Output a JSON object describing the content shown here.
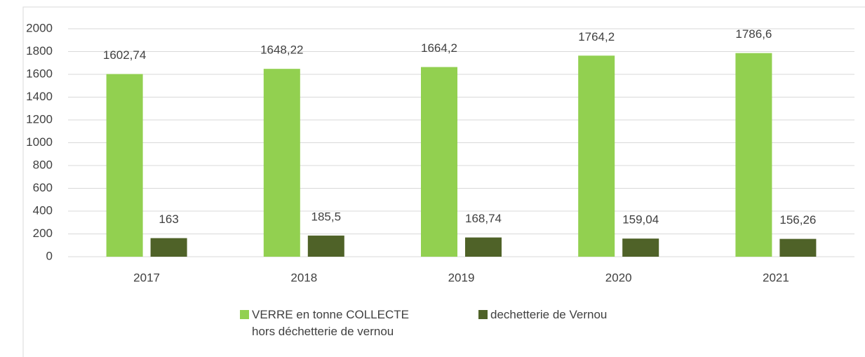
{
  "chart_data": {
    "type": "bar",
    "categories": [
      "2017",
      "2018",
      "2019",
      "2020",
      "2021"
    ],
    "series": [
      {
        "name": "VERRE en tonne COLLECTE hors déchetterie de vernou",
        "color": "#92d050",
        "values": [
          1602.74,
          1648.22,
          1664.2,
          1764.2,
          1786.6
        ],
        "value_labels": [
          "1602,74",
          "1648,22",
          "1664,2",
          "1764,2",
          "1786,6"
        ]
      },
      {
        "name": "dechetterie de Vernou",
        "color": "#4f6228",
        "values": [
          163,
          185.5,
          168.74,
          159.04,
          156.26
        ],
        "value_labels": [
          "163",
          "185,5",
          "168,74",
          "159,04",
          "156,26"
        ]
      }
    ],
    "ylim": [
      0,
      2000
    ],
    "yticks": [
      0,
      200,
      400,
      600,
      800,
      1000,
      1200,
      1400,
      1600,
      1800,
      2000
    ],
    "grid": true,
    "legend": "bottom"
  }
}
